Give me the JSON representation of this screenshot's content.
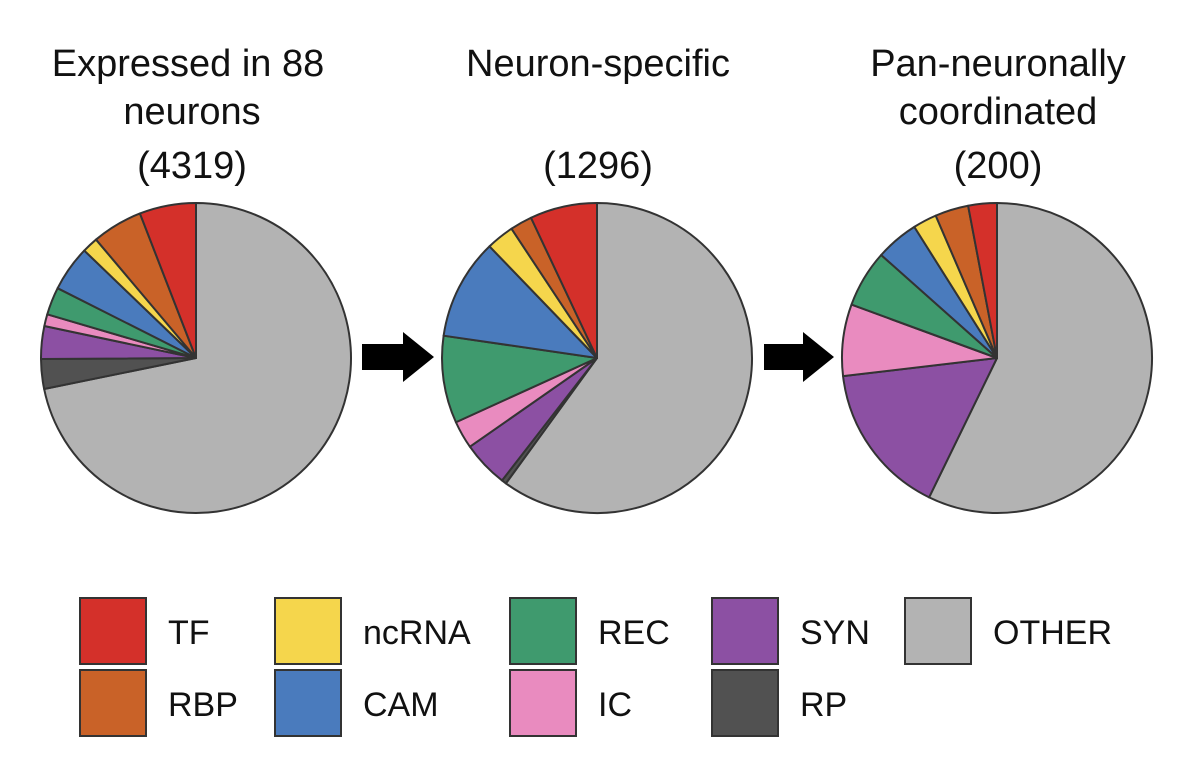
{
  "chart_data": [
    {
      "type": "pie",
      "title": [
        "Expressed in 88",
        "neurons",
        "(4319)"
      ],
      "categories": [
        "OTHER",
        "RP",
        "SYN",
        "IC",
        "REC",
        "CAM",
        "ncRNA",
        "RBP",
        "TF"
      ],
      "values": [
        69.5,
        3.0,
        3.3,
        1.2,
        2.8,
        4.6,
        1.6,
        5.1,
        5.7
      ]
    },
    {
      "type": "pie",
      "title": [
        "Neuron-specific",
        "",
        "(1296)"
      ],
      "categories": [
        "OTHER",
        "RP",
        "SYN",
        "IC",
        "REC",
        "CAM",
        "ncRNA",
        "RBP",
        "TF"
      ],
      "values": [
        60.0,
        0.5,
        4.8,
        2.9,
        9.1,
        10.5,
        2.9,
        2.3,
        7.0
      ]
    },
    {
      "type": "pie",
      "title": [
        "Pan-neuronally",
        "coordinated",
        "(200)"
      ],
      "categories": [
        "OTHER",
        "SYN",
        "IC",
        "REC",
        "CAM",
        "ncRNA",
        "RBP",
        "TF"
      ],
      "values": [
        57.5,
        16.0,
        7.5,
        6.0,
        4.5,
        2.5,
        3.5,
        3.0
      ]
    }
  ],
  "colors": {
    "TF": "#d4302a",
    "RBP": "#c96228",
    "ncRNA": "#f5d64c",
    "CAM": "#4a7bbd",
    "REC": "#3f9a6e",
    "IC": "#e98bbf",
    "SYN": "#8c50a3",
    "RP": "#515151",
    "OTHER": "#b3b3b3"
  },
  "legend": [
    {
      "key": "TF",
      "label": "TF"
    },
    {
      "key": "RBP",
      "label": "RBP"
    },
    {
      "key": "ncRNA",
      "label": "ncRNA"
    },
    {
      "key": "CAM",
      "label": "CAM"
    },
    {
      "key": "REC",
      "label": "REC"
    },
    {
      "key": "IC",
      "label": "IC"
    },
    {
      "key": "SYN",
      "label": "SYN"
    },
    {
      "key": "RP",
      "label": "RP"
    },
    {
      "key": "OTHER",
      "label": "OTHER"
    }
  ],
  "arrow_icon": "right-arrow-icon"
}
